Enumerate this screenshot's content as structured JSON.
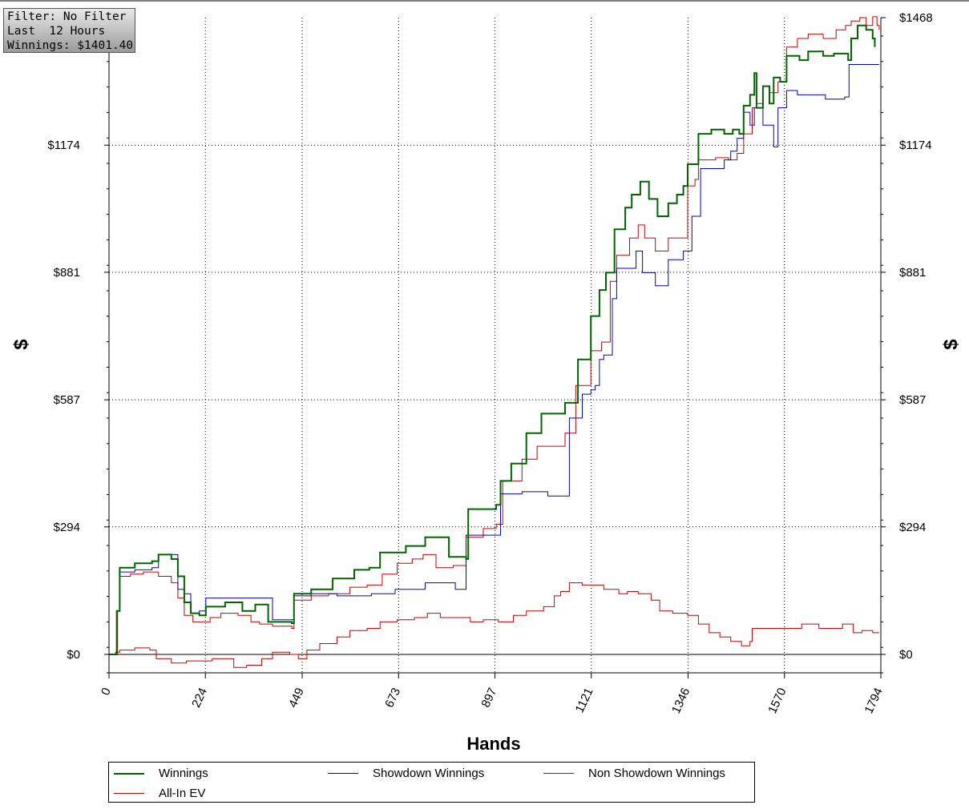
{
  "info": {
    "filter": "Filter: No Filter",
    "period": "Last  12 Hours",
    "winnings": "Winnings: $1401.40"
  },
  "chart_data": {
    "type": "line",
    "xlabel": "Hands",
    "ylabel": "$",
    "ylabel_right": "$",
    "xlim": [
      0,
      1794
    ],
    "ylim": [
      -45,
      1468
    ],
    "x_ticks": [
      "0",
      "224",
      "449",
      "673",
      "897",
      "1121",
      "1346",
      "1570",
      "1794"
    ],
    "y_ticks": [
      "$0",
      "$294",
      "$587",
      "$881",
      "$1174",
      "$1468"
    ],
    "y_tick_values": [
      0,
      294,
      587,
      881,
      1174,
      1468
    ],
    "grid": true,
    "legend_position": "bottom",
    "series": [
      {
        "name": "Winnings",
        "color": "#006400",
        "width": 2,
        "points": [
          [
            0,
            0
          ],
          [
            15,
            0
          ],
          [
            18,
            100
          ],
          [
            25,
            200
          ],
          [
            60,
            210
          ],
          [
            100,
            215
          ],
          [
            115,
            230
          ],
          [
            145,
            220
          ],
          [
            160,
            180
          ],
          [
            175,
            120
          ],
          [
            190,
            95
          ],
          [
            210,
            90
          ],
          [
            225,
            110
          ],
          [
            270,
            120
          ],
          [
            310,
            100
          ],
          [
            340,
            115
          ],
          [
            370,
            75
          ],
          [
            425,
            72
          ],
          [
            430,
            140
          ],
          [
            470,
            150
          ],
          [
            520,
            175
          ],
          [
            570,
            195
          ],
          [
            605,
            200
          ],
          [
            630,
            235
          ],
          [
            690,
            250
          ],
          [
            735,
            270
          ],
          [
            790,
            225
          ],
          [
            830,
            220
          ],
          [
            835,
            335
          ],
          [
            900,
            345
          ],
          [
            910,
            400
          ],
          [
            935,
            440
          ],
          [
            970,
            510
          ],
          [
            1005,
            555
          ],
          [
            1040,
            555
          ],
          [
            1060,
            580
          ],
          [
            1090,
            680
          ],
          [
            1120,
            780
          ],
          [
            1130,
            780
          ],
          [
            1140,
            840
          ],
          [
            1155,
            880
          ],
          [
            1175,
            980
          ],
          [
            1200,
            1030
          ],
          [
            1215,
            1060
          ],
          [
            1235,
            1090
          ],
          [
            1255,
            1050
          ],
          [
            1275,
            1010
          ],
          [
            1300,
            1040
          ],
          [
            1320,
            1060
          ],
          [
            1335,
            1080
          ],
          [
            1345,
            1130
          ],
          [
            1362,
            1130
          ],
          [
            1370,
            1200
          ],
          [
            1400,
            1210
          ],
          [
            1430,
            1200
          ],
          [
            1450,
            1210
          ],
          [
            1465,
            1200
          ],
          [
            1475,
            1265
          ],
          [
            1490,
            1290
          ],
          [
            1500,
            1340
          ],
          [
            1505,
            1260
          ],
          [
            1520,
            1310
          ],
          [
            1535,
            1270
          ],
          [
            1545,
            1330
          ],
          [
            1560,
            1320
          ],
          [
            1575,
            1380
          ],
          [
            1605,
            1370
          ],
          [
            1625,
            1390
          ],
          [
            1660,
            1380
          ],
          [
            1685,
            1385
          ],
          [
            1718,
            1370
          ],
          [
            1725,
            1420
          ],
          [
            1740,
            1450
          ],
          [
            1760,
            1440
          ],
          [
            1775,
            1420
          ],
          [
            1780,
            1400
          ]
        ]
      },
      {
        "name": "Showdown Winnings",
        "color": "#0000cc",
        "width": 1,
        "points": [
          [
            0,
            0
          ],
          [
            15,
            0
          ],
          [
            18,
            100
          ],
          [
            25,
            190
          ],
          [
            60,
            195
          ],
          [
            100,
            200
          ],
          [
            115,
            230
          ],
          [
            150,
            230
          ],
          [
            160,
            150
          ],
          [
            175,
            140
          ],
          [
            190,
            95
          ],
          [
            210,
            100
          ],
          [
            225,
            130
          ],
          [
            260,
            130
          ],
          [
            330,
            130
          ],
          [
            370,
            130
          ],
          [
            380,
            80
          ],
          [
            425,
            80
          ],
          [
            430,
            135
          ],
          [
            470,
            140
          ],
          [
            530,
            135
          ],
          [
            610,
            140
          ],
          [
            665,
            150
          ],
          [
            735,
            165
          ],
          [
            800,
            165
          ],
          [
            805,
            150
          ],
          [
            825,
            150
          ],
          [
            830,
            275
          ],
          [
            905,
            275
          ],
          [
            910,
            370
          ],
          [
            960,
            375
          ],
          [
            1020,
            365
          ],
          [
            1060,
            365
          ],
          [
            1070,
            545
          ],
          [
            1090,
            545
          ],
          [
            1100,
            600
          ],
          [
            1120,
            610
          ],
          [
            1130,
            620
          ],
          [
            1140,
            680
          ],
          [
            1150,
            690
          ],
          [
            1170,
            820
          ],
          [
            1180,
            890
          ],
          [
            1215,
            890
          ],
          [
            1225,
            930
          ],
          [
            1240,
            880
          ],
          [
            1260,
            880
          ],
          [
            1270,
            850
          ],
          [
            1300,
            910
          ],
          [
            1335,
            930
          ],
          [
            1355,
            1010
          ],
          [
            1375,
            1120
          ],
          [
            1410,
            1120
          ],
          [
            1430,
            1140
          ],
          [
            1445,
            1160
          ],
          [
            1460,
            1190
          ],
          [
            1475,
            1250
          ],
          [
            1490,
            1220
          ],
          [
            1500,
            1260
          ],
          [
            1520,
            1220
          ],
          [
            1545,
            1170
          ],
          [
            1555,
            1260
          ],
          [
            1575,
            1300
          ],
          [
            1600,
            1290
          ],
          [
            1665,
            1280
          ],
          [
            1710,
            1285
          ],
          [
            1720,
            1360
          ],
          [
            1790,
            1360
          ]
        ]
      },
      {
        "name": "Non Showdown Winnings",
        "color": "#cc0000",
        "width": 1,
        "points": [
          [
            0,
            0
          ],
          [
            15,
            5
          ],
          [
            25,
            10
          ],
          [
            60,
            15
          ],
          [
            95,
            10
          ],
          [
            110,
            -10
          ],
          [
            145,
            -20
          ],
          [
            180,
            -15
          ],
          [
            240,
            -10
          ],
          [
            290,
            -30
          ],
          [
            320,
            -25
          ],
          [
            355,
            -10
          ],
          [
            380,
            5
          ],
          [
            420,
            0
          ],
          [
            440,
            -10
          ],
          [
            460,
            10
          ],
          [
            490,
            25
          ],
          [
            530,
            40
          ],
          [
            560,
            55
          ],
          [
            600,
            60
          ],
          [
            630,
            75
          ],
          [
            670,
            80
          ],
          [
            710,
            85
          ],
          [
            740,
            95
          ],
          [
            770,
            85
          ],
          [
            800,
            85
          ],
          [
            840,
            75
          ],
          [
            870,
            80
          ],
          [
            905,
            75
          ],
          [
            940,
            90
          ],
          [
            970,
            100
          ],
          [
            1010,
            110
          ],
          [
            1035,
            135
          ],
          [
            1050,
            145
          ],
          [
            1070,
            165
          ],
          [
            1100,
            160
          ],
          [
            1150,
            150
          ],
          [
            1185,
            140
          ],
          [
            1205,
            145
          ],
          [
            1230,
            140
          ],
          [
            1260,
            125
          ],
          [
            1280,
            100
          ],
          [
            1310,
            95
          ],
          [
            1345,
            90
          ],
          [
            1370,
            70
          ],
          [
            1395,
            50
          ],
          [
            1420,
            40
          ],
          [
            1445,
            30
          ],
          [
            1470,
            20
          ],
          [
            1490,
            30
          ],
          [
            1495,
            60
          ],
          [
            1515,
            60
          ],
          [
            1550,
            60
          ],
          [
            1580,
            60
          ],
          [
            1610,
            70
          ],
          [
            1650,
            60
          ],
          [
            1680,
            60
          ],
          [
            1705,
            70
          ],
          [
            1730,
            50
          ],
          [
            1750,
            55
          ],
          [
            1775,
            50
          ],
          [
            1790,
            50
          ]
        ]
      },
      {
        "name": "All-In EV",
        "color": "#cc0000",
        "width": 1,
        "points": [
          [
            0,
            0
          ],
          [
            15,
            0
          ],
          [
            20,
            100
          ],
          [
            25,
            180
          ],
          [
            50,
            185
          ],
          [
            80,
            190
          ],
          [
            100,
            190
          ],
          [
            115,
            180
          ],
          [
            145,
            165
          ],
          [
            160,
            130
          ],
          [
            175,
            90
          ],
          [
            195,
            75
          ],
          [
            215,
            75
          ],
          [
            235,
            85
          ],
          [
            260,
            95
          ],
          [
            300,
            90
          ],
          [
            330,
            75
          ],
          [
            350,
            70
          ],
          [
            380,
            65
          ],
          [
            425,
            60
          ],
          [
            430,
            125
          ],
          [
            470,
            135
          ],
          [
            510,
            140
          ],
          [
            560,
            155
          ],
          [
            600,
            160
          ],
          [
            635,
            185
          ],
          [
            670,
            210
          ],
          [
            705,
            220
          ],
          [
            730,
            230
          ],
          [
            760,
            200
          ],
          [
            800,
            205
          ],
          [
            830,
            270
          ],
          [
            870,
            290
          ],
          [
            900,
            300
          ],
          [
            915,
            400
          ],
          [
            960,
            450
          ],
          [
            995,
            480
          ],
          [
            1045,
            480
          ],
          [
            1060,
            510
          ],
          [
            1085,
            620
          ],
          [
            1120,
            700
          ],
          [
            1145,
            720
          ],
          [
            1165,
            860
          ],
          [
            1180,
            920
          ],
          [
            1210,
            960
          ],
          [
            1230,
            990
          ],
          [
            1245,
            960
          ],
          [
            1270,
            930
          ],
          [
            1300,
            960
          ],
          [
            1335,
            960
          ],
          [
            1345,
            1080
          ],
          [
            1362,
            1095
          ],
          [
            1370,
            1140
          ],
          [
            1410,
            1145
          ],
          [
            1440,
            1140
          ],
          [
            1460,
            1155
          ],
          [
            1475,
            1200
          ],
          [
            1495,
            1260
          ],
          [
            1505,
            1270
          ],
          [
            1520,
            1310
          ],
          [
            1535,
            1295
          ],
          [
            1555,
            1320
          ],
          [
            1575,
            1400
          ],
          [
            1600,
            1420
          ],
          [
            1625,
            1430
          ],
          [
            1660,
            1420
          ],
          [
            1690,
            1440
          ],
          [
            1712,
            1450
          ],
          [
            1725,
            1460
          ],
          [
            1745,
            1468
          ],
          [
            1760,
            1450
          ],
          [
            1775,
            1470
          ],
          [
            1785,
            1450
          ],
          [
            1790,
            1440
          ]
        ]
      }
    ]
  }
}
